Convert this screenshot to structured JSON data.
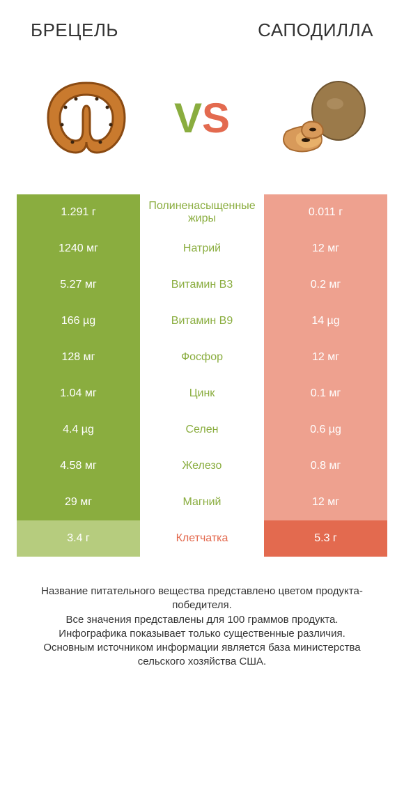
{
  "header": {
    "left": "БРЕЦЕЛЬ",
    "right": "САПОДИЛЛА"
  },
  "vs": {
    "v": "V",
    "s": "S"
  },
  "colors": {
    "green_win": "#8aad3f",
    "green_lose": "#b6cc7e",
    "orange_win": "#e36a4f",
    "orange_lose": "#eea18f",
    "bg": "#ffffff",
    "text": "#333333"
  },
  "rows": [
    {
      "left": "1.291 г",
      "mid": "Полиненасыщенные жиры",
      "right": "0.011 г",
      "winner": "left"
    },
    {
      "left": "1240 мг",
      "mid": "Натрий",
      "right": "12 мг",
      "winner": "left"
    },
    {
      "left": "5.27 мг",
      "mid": "Витамин B3",
      "right": "0.2 мг",
      "winner": "left"
    },
    {
      "left": "166 µg",
      "mid": "Витамин B9",
      "right": "14 µg",
      "winner": "left"
    },
    {
      "left": "128 мг",
      "mid": "Фосфор",
      "right": "12 мг",
      "winner": "left"
    },
    {
      "left": "1.04 мг",
      "mid": "Цинк",
      "right": "0.1 мг",
      "winner": "left"
    },
    {
      "left": "4.4 µg",
      "mid": "Селен",
      "right": "0.6 µg",
      "winner": "left"
    },
    {
      "left": "4.58 мг",
      "mid": "Железо",
      "right": "0.8 мг",
      "winner": "left"
    },
    {
      "left": "29 мг",
      "mid": "Магний",
      "right": "12 мг",
      "winner": "left"
    },
    {
      "left": "3.4 г",
      "mid": "Клетчатка",
      "right": "5.3 г",
      "winner": "right"
    }
  ],
  "footer": "Название питательного вещества представлено цветом продукта-победителя.\nВсе значения представлены для 100 граммов продукта.\nИнфографика показывает только существенные различия.\nОсновным источником информации является база министерства сельского хозяйства США.",
  "icons": {
    "left": "pretzel-icon",
    "right": "sapodilla-icon"
  }
}
